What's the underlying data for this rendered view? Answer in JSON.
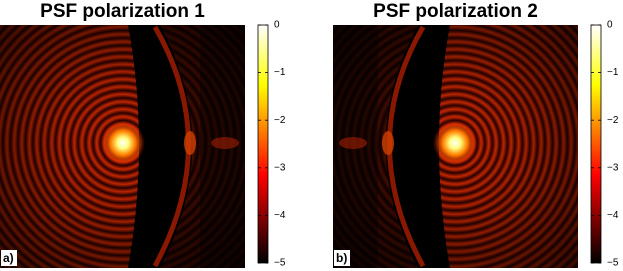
{
  "chart_data": [
    {
      "type": "heatmap",
      "title": "PSF polarization 1",
      "panel_label": "a)",
      "colormap": "hot",
      "clim": [
        -5,
        0
      ],
      "cticks": [
        0,
        {
          "value": -1,
          "label": "−1"
        },
        {
          "value": -2,
          "label": "−2"
        },
        {
          "value": -3,
          "label": "−3"
        },
        {
          "value": -4,
          "label": "−4"
        },
        {
          "value": -5,
          "label": "−5"
        }
      ]
    },
    {
      "type": "heatmap",
      "title": "PSF polarization 2",
      "panel_label": "b)",
      "colormap": "hot",
      "clim": [
        -5,
        0
      ],
      "cticks": [
        0,
        {
          "value": -1,
          "label": "−1"
        },
        {
          "value": -2,
          "label": "−2"
        },
        {
          "value": -3,
          "label": "−3"
        },
        {
          "value": -4,
          "label": "−4"
        },
        {
          "value": -5,
          "label": "−5"
        }
      ]
    }
  ]
}
